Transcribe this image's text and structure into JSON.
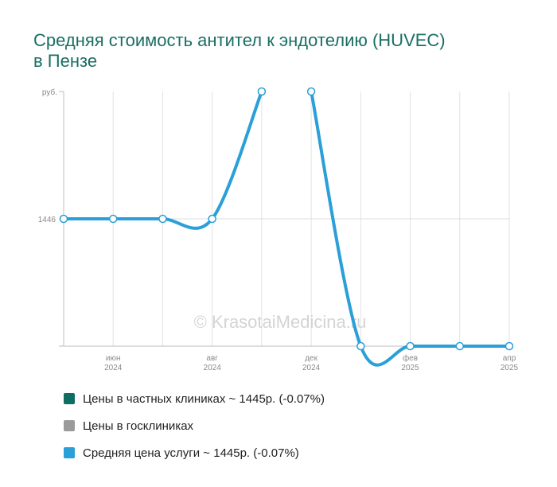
{
  "title_line1": "Средняя стоимость антител к эндотелию (HUVEC)",
  "title_line2": "в Пензе",
  "watermark": "© KrasotaiMedicina.ru",
  "chart_data": {
    "type": "line",
    "y_unit_label": "руб.",
    "y_tick_labels": [
      "1446"
    ],
    "y_tick_values": [
      1446
    ],
    "ylim": [
      1445,
      1447
    ],
    "x_tick_labels": [
      {
        "month": "июн",
        "year": "2024"
      },
      {
        "month": "авг",
        "year": "2024"
      },
      {
        "month": "дек",
        "year": "2024"
      },
      {
        "month": "фев",
        "year": "2025"
      },
      {
        "month": "апр",
        "year": "2025"
      }
    ],
    "x_tick_index": [
      1,
      3,
      5,
      7,
      9
    ],
    "grid": true,
    "series": [
      {
        "name": "Средняя цена услуги ~ 1445р. (-0.07%)",
        "color": "#2a9fd8",
        "points": [
          {
            "i": 0,
            "y": 1446
          },
          {
            "i": 1,
            "y": 1446
          },
          {
            "i": 2,
            "y": 1446
          },
          {
            "i": 3,
            "y": 1446
          },
          {
            "i": 4,
            "y": 1447
          },
          {
            "i": 5,
            "y": 1447
          },
          {
            "i": 6,
            "y": 1445
          },
          {
            "i": 7,
            "y": 1445
          },
          {
            "i": 8,
            "y": 1445
          },
          {
            "i": 9,
            "y": 1445
          }
        ]
      }
    ],
    "legend": [
      {
        "label": "Цены в частных клиниках ~ 1445р. (-0.07%)",
        "color": "#0f6e62"
      },
      {
        "label": "Цены в госклиниках",
        "color": "#9a9a9a"
      },
      {
        "label": "Средняя цена услуги ~ 1445р. (-0.07%)",
        "color": "#2a9fd8"
      }
    ],
    "legend_position": "bottom-left"
  }
}
